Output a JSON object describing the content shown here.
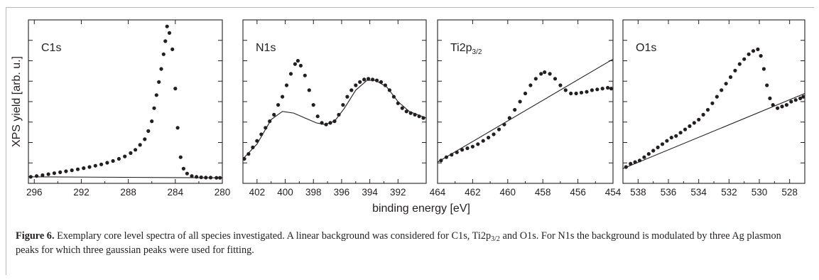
{
  "figure": {
    "ylabel": "XPS yield [arb. u.]",
    "xlabel": "binding energy [eV]",
    "caption": {
      "label": "Figure 6.",
      "text_1": " Exemplary core level spectra of all species investigated. A linear background was considered for C1s, Ti2p",
      "sub_1": "3/2",
      "text_2": " and O1s. For N1s the background is modulated by three Ag plasmon peaks for which three gaussian peaks were used for fitting."
    }
  },
  "chart_data": [
    {
      "type": "scatter",
      "title": "C1s",
      "xlim": [
        296.5,
        280
      ],
      "xticks": [
        296,
        292,
        288,
        284,
        280
      ],
      "ylim": [
        0,
        1
      ],
      "points": [
        [
          296.3,
          0.04
        ],
        [
          295.8,
          0.045
        ],
        [
          295.3,
          0.05
        ],
        [
          294.8,
          0.056
        ],
        [
          294.3,
          0.062
        ],
        [
          293.8,
          0.068
        ],
        [
          293.3,
          0.074
        ],
        [
          292.8,
          0.08
        ],
        [
          292.3,
          0.086
        ],
        [
          291.8,
          0.093
        ],
        [
          291.3,
          0.1
        ],
        [
          290.8,
          0.108
        ],
        [
          290.3,
          0.116
        ],
        [
          289.8,
          0.126
        ],
        [
          289.3,
          0.137
        ],
        [
          288.8,
          0.15
        ],
        [
          288.3,
          0.165
        ],
        [
          287.8,
          0.185
        ],
        [
          287.4,
          0.205
        ],
        [
          287.0,
          0.235
        ],
        [
          286.6,
          0.27
        ],
        [
          286.3,
          0.32
        ],
        [
          286.0,
          0.38
        ],
        [
          285.8,
          0.46
        ],
        [
          285.6,
          0.54
        ],
        [
          285.4,
          0.62
        ],
        [
          285.2,
          0.7
        ],
        [
          285.0,
          0.79
        ],
        [
          284.85,
          0.87
        ],
        [
          284.7,
          0.96
        ],
        [
          284.5,
          0.92
        ],
        [
          284.25,
          0.82
        ],
        [
          284.0,
          0.58
        ],
        [
          283.8,
          0.34
        ],
        [
          283.55,
          0.16
        ],
        [
          283.3,
          0.09
        ],
        [
          283.0,
          0.06
        ],
        [
          282.6,
          0.045
        ],
        [
          282.2,
          0.04
        ],
        [
          281.8,
          0.037
        ],
        [
          281.4,
          0.035
        ],
        [
          281.0,
          0.035
        ],
        [
          280.5,
          0.034
        ],
        [
          280.2,
          0.034
        ]
      ],
      "background_line": [
        [
          296.5,
          0.04
        ],
        [
          280,
          0.034
        ]
      ]
    },
    {
      "type": "scatter",
      "title": "N1s",
      "xlim": [
        403,
        390
      ],
      "xticks": [
        402,
        400,
        398,
        396,
        394,
        392
      ],
      "ylim": [
        0,
        1
      ],
      "points": [
        [
          402.9,
          0.15
        ],
        [
          402.6,
          0.18
        ],
        [
          402.3,
          0.22
        ],
        [
          402.0,
          0.26
        ],
        [
          401.7,
          0.3
        ],
        [
          401.4,
          0.34
        ],
        [
          401.1,
          0.38
        ],
        [
          400.8,
          0.42
        ],
        [
          400.5,
          0.48
        ],
        [
          400.2,
          0.53
        ],
        [
          399.9,
          0.6
        ],
        [
          399.6,
          0.67
        ],
        [
          399.3,
          0.73
        ],
        [
          399.1,
          0.75
        ],
        [
          398.9,
          0.72
        ],
        [
          398.6,
          0.66
        ],
        [
          398.3,
          0.57
        ],
        [
          398.0,
          0.48
        ],
        [
          397.7,
          0.41
        ],
        [
          397.4,
          0.37
        ],
        [
          397.1,
          0.36
        ],
        [
          396.8,
          0.37
        ],
        [
          396.5,
          0.38
        ],
        [
          396.2,
          0.42
        ],
        [
          395.9,
          0.48
        ],
        [
          395.6,
          0.53
        ],
        [
          395.3,
          0.57
        ],
        [
          395.0,
          0.6
        ],
        [
          394.7,
          0.62
        ],
        [
          394.4,
          0.635
        ],
        [
          394.1,
          0.64
        ],
        [
          393.8,
          0.635
        ],
        [
          393.5,
          0.63
        ],
        [
          393.2,
          0.62
        ],
        [
          392.9,
          0.6
        ],
        [
          392.6,
          0.57
        ],
        [
          392.3,
          0.53
        ],
        [
          392.0,
          0.49
        ],
        [
          391.7,
          0.46
        ],
        [
          391.4,
          0.44
        ],
        [
          391.1,
          0.43
        ],
        [
          390.8,
          0.42
        ],
        [
          390.5,
          0.41
        ],
        [
          390.2,
          0.4
        ]
      ],
      "background_line": [
        [
          403,
          0.15
        ],
        [
          402,
          0.24
        ],
        [
          401,
          0.39
        ],
        [
          400.2,
          0.44
        ],
        [
          399.4,
          0.43
        ],
        [
          398.6,
          0.4
        ],
        [
          397.8,
          0.37
        ],
        [
          397.2,
          0.36
        ],
        [
          396.5,
          0.38
        ],
        [
          395.8,
          0.46
        ],
        [
          395.0,
          0.57
        ],
        [
          394.2,
          0.63
        ],
        [
          393.6,
          0.63
        ],
        [
          392.8,
          0.59
        ],
        [
          392.0,
          0.5
        ],
        [
          391.2,
          0.44
        ],
        [
          390,
          0.4
        ]
      ]
    },
    {
      "type": "scatter",
      "title": "Ti2p",
      "title_sub": "3/2",
      "xlim": [
        464,
        454
      ],
      "xticks": [
        464,
        462,
        460,
        458,
        456,
        454
      ],
      "ylim": [
        0,
        1
      ],
      "points": [
        [
          463.8,
          0.14
        ],
        [
          463.5,
          0.16
        ],
        [
          463.2,
          0.175
        ],
        [
          462.9,
          0.19
        ],
        [
          462.6,
          0.205
        ],
        [
          462.3,
          0.215
        ],
        [
          462.0,
          0.225
        ],
        [
          461.7,
          0.24
        ],
        [
          461.4,
          0.26
        ],
        [
          461.1,
          0.28
        ],
        [
          460.8,
          0.3
        ],
        [
          460.5,
          0.33
        ],
        [
          460.2,
          0.36
        ],
        [
          459.9,
          0.4
        ],
        [
          459.6,
          0.45
        ],
        [
          459.3,
          0.5
        ],
        [
          459.0,
          0.55
        ],
        [
          458.7,
          0.6
        ],
        [
          458.4,
          0.64
        ],
        [
          458.1,
          0.67
        ],
        [
          457.9,
          0.68
        ],
        [
          457.6,
          0.67
        ],
        [
          457.3,
          0.64
        ],
        [
          457.0,
          0.6
        ],
        [
          456.7,
          0.57
        ],
        [
          456.4,
          0.55
        ],
        [
          456.1,
          0.55
        ],
        [
          455.8,
          0.555
        ],
        [
          455.5,
          0.56
        ],
        [
          455.2,
          0.57
        ],
        [
          454.9,
          0.575
        ],
        [
          454.6,
          0.58
        ],
        [
          454.3,
          0.585
        ],
        [
          454.1,
          0.58
        ]
      ],
      "background_line": [
        [
          464,
          0.13
        ],
        [
          454,
          0.76
        ]
      ]
    },
    {
      "type": "scatter",
      "title": "O1s",
      "xlim": [
        539,
        527
      ],
      "xticks": [
        538,
        536,
        534,
        532,
        530,
        528
      ],
      "ylim": [
        0,
        1
      ],
      "points": [
        [
          538.8,
          0.1
        ],
        [
          538.5,
          0.12
        ],
        [
          538.2,
          0.13
        ],
        [
          537.9,
          0.14
        ],
        [
          537.6,
          0.16
        ],
        [
          537.3,
          0.18
        ],
        [
          537.0,
          0.2
        ],
        [
          536.7,
          0.22
        ],
        [
          536.4,
          0.24
        ],
        [
          536.1,
          0.26
        ],
        [
          535.8,
          0.28
        ],
        [
          535.5,
          0.29
        ],
        [
          535.2,
          0.31
        ],
        [
          534.9,
          0.33
        ],
        [
          534.6,
          0.35
        ],
        [
          534.3,
          0.37
        ],
        [
          534.0,
          0.39
        ],
        [
          533.7,
          0.42
        ],
        [
          533.4,
          0.45
        ],
        [
          533.1,
          0.49
        ],
        [
          532.8,
          0.53
        ],
        [
          532.5,
          0.57
        ],
        [
          532.2,
          0.61
        ],
        [
          531.9,
          0.65
        ],
        [
          531.6,
          0.69
        ],
        [
          531.3,
          0.73
        ],
        [
          531.0,
          0.76
        ],
        [
          530.7,
          0.79
        ],
        [
          530.4,
          0.81
        ],
        [
          530.1,
          0.82
        ],
        [
          529.9,
          0.78
        ],
        [
          529.7,
          0.7
        ],
        [
          529.5,
          0.6
        ],
        [
          529.3,
          0.52
        ],
        [
          529.1,
          0.48
        ],
        [
          528.8,
          0.46
        ],
        [
          528.5,
          0.47
        ],
        [
          528.2,
          0.48
        ],
        [
          527.9,
          0.5
        ],
        [
          527.6,
          0.51
        ],
        [
          527.3,
          0.52
        ],
        [
          527.1,
          0.53
        ]
      ],
      "background_line": [
        [
          539,
          0.09
        ],
        [
          527,
          0.55
        ]
      ]
    }
  ]
}
